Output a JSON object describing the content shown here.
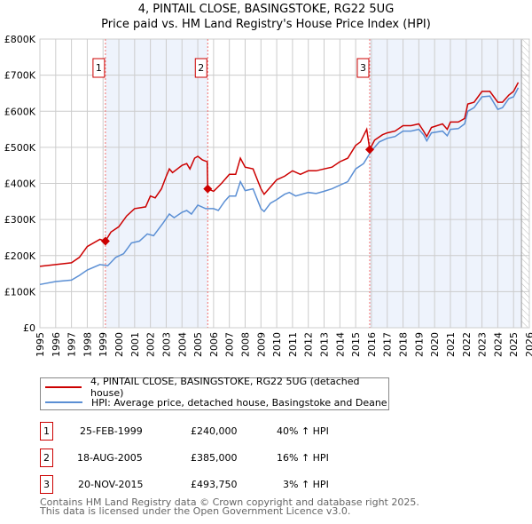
{
  "chart_data": {
    "type": "line",
    "title": "4, PINTAIL CLOSE, BASINGSTOKE, RG22 5UG",
    "subtitle": "Price paid vs. HM Land Registry's House Price Index (HPI)",
    "xlim": [
      1995,
      2026
    ],
    "ylim": [
      0,
      800000
    ],
    "x_ticks": [
      "1995",
      "1996",
      "1997",
      "1998",
      "1999",
      "2000",
      "2001",
      "2002",
      "2003",
      "2004",
      "2005",
      "2006",
      "2007",
      "2008",
      "2009",
      "2010",
      "2011",
      "2012",
      "2013",
      "2014",
      "2015",
      "2016",
      "2017",
      "2018",
      "2019",
      "2020",
      "2021",
      "2022",
      "2023",
      "2024",
      "2025",
      "2026"
    ],
    "y_ticks": [
      {
        "v": 0,
        "label": "£0"
      },
      {
        "v": 100000,
        "label": "£100K"
      },
      {
        "v": 200000,
        "label": "£200K"
      },
      {
        "v": 300000,
        "label": "£300K"
      },
      {
        "v": 400000,
        "label": "£400K"
      },
      {
        "v": 500000,
        "label": "£500K"
      },
      {
        "v": 600000,
        "label": "£600K"
      },
      {
        "v": 700000,
        "label": "£700K"
      },
      {
        "v": 800000,
        "label": "£800K"
      }
    ],
    "grid": true,
    "series": [
      {
        "name": "4, PINTAIL CLOSE, BASINGSTOKE, RG22 5UG (detached house)",
        "color": "#cc0000",
        "x": [
          1995,
          1996,
          1997,
          1997.5,
          1998,
          1998.8,
          1999.15,
          1999.5,
          2000,
          2000.5,
          2001,
          2001.7,
          2002,
          2002.3,
          2002.7,
          2003,
          2003.2,
          2003.4,
          2004,
          2004.3,
          2004.5,
          2004.8,
          2005,
          2005.3,
          2005.6,
          2005.63,
          2006,
          2006.5,
          2007,
          2007.4,
          2007.7,
          2008,
          2008.5,
          2009,
          2009.2,
          2009.5,
          2010,
          2010.5,
          2011,
          2011.5,
          2012,
          2012.5,
          2013,
          2013.5,
          2014,
          2014.5,
          2015,
          2015.3,
          2015.7,
          2015.89,
          2016.2,
          2016.7,
          2017,
          2017.5,
          2018,
          2018.5,
          2019,
          2019.3,
          2019.5,
          2019.8,
          2020.5,
          2020.8,
          2021,
          2021.5,
          2021.9,
          2022.1,
          2022.5,
          2023,
          2023.5,
          2024,
          2024.3,
          2024.7,
          2025,
          2025.3
        ],
        "y": [
          170,
          175,
          180,
          195,
          225,
          245,
          240,
          265,
          280,
          310,
          330,
          335,
          365,
          360,
          385,
          420,
          440,
          430,
          450,
          455,
          440,
          470,
          475,
          465,
          460,
          385,
          378,
          400,
          425,
          425,
          470,
          445,
          440,
          385,
          370,
          385,
          410,
          420,
          435,
          425,
          435,
          435,
          440,
          445,
          460,
          470,
          505,
          515,
          550,
          493.75,
          520,
          535,
          540,
          545,
          560,
          560,
          565,
          545,
          530,
          555,
          565,
          550,
          570,
          570,
          580,
          620,
          625,
          655,
          655,
          625,
          625,
          645,
          655,
          680
        ]
      },
      {
        "name": "HPI: Average price, detached house, Basingstoke and Deane",
        "color": "#5b8fd4",
        "x": [
          1995,
          1996,
          1997,
          1997.5,
          1998,
          1998.8,
          1999.3,
          1999.8,
          2000.3,
          2000.8,
          2001.3,
          2001.8,
          2002.2,
          2002.8,
          2003.2,
          2003.5,
          2004,
          2004.3,
          2004.6,
          2005,
          2005.5,
          2006,
          2006.3,
          2006.7,
          2007,
          2007.4,
          2007.7,
          2008,
          2008.5,
          2009,
          2009.2,
          2009.6,
          2010,
          2010.5,
          2010.8,
          2011.2,
          2012,
          2012.5,
          2013,
          2013.5,
          2014,
          2014.5,
          2015,
          2015.5,
          2016,
          2016.5,
          2017,
          2017.5,
          2018,
          2018.5,
          2019,
          2019.3,
          2019.5,
          2019.8,
          2020.5,
          2020.8,
          2021,
          2021.5,
          2021.9,
          2022.1,
          2022.5,
          2023,
          2023.5,
          2024,
          2024.3,
          2024.7,
          2025,
          2025.3
        ],
        "y": [
          120,
          128,
          132,
          145,
          160,
          175,
          172,
          195,
          205,
          235,
          240,
          260,
          255,
          290,
          315,
          305,
          320,
          325,
          315,
          340,
          330,
          330,
          325,
          350,
          365,
          365,
          405,
          380,
          385,
          330,
          322,
          345,
          355,
          370,
          375,
          365,
          375,
          372,
          378,
          385,
          395,
          405,
          440,
          455,
          490,
          515,
          525,
          530,
          545,
          545,
          550,
          535,
          518,
          540,
          545,
          532,
          550,
          552,
          565,
          600,
          610,
          640,
          642,
          605,
          610,
          635,
          640,
          665
        ]
      }
    ],
    "y_unit_multiplier": 1000,
    "sales": [
      {
        "label": "1",
        "x": 1999.15,
        "date": "25-FEB-1999",
        "price": "£240,000",
        "value": 240000,
        "hpi": "40% ↑ HPI"
      },
      {
        "label": "2",
        "x": 2005.63,
        "date": "18-AUG-2005",
        "price": "£385,000",
        "value": 385000,
        "hpi": "16% ↑ HPI"
      },
      {
        "label": "3",
        "x": 2015.89,
        "date": "20-NOV-2015",
        "price": "£493,750",
        "value": 493750,
        "hpi": "3% ↑ HPI"
      }
    ],
    "data_end": 2025.5,
    "legend_placement": "below"
  },
  "footer": {
    "line1": "Contains HM Land Registry data © Crown copyright and database right 2025.",
    "line2": "This data is licensed under the Open Government Licence v3.0."
  }
}
